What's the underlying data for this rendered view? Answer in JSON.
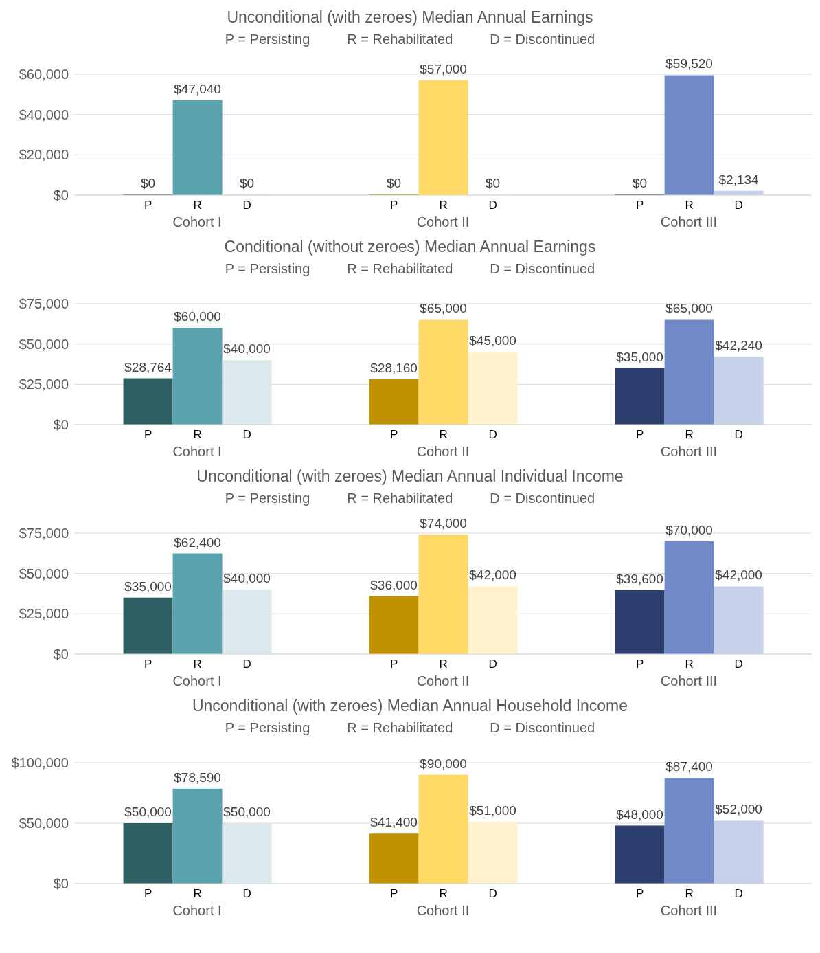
{
  "chart_data": [
    {
      "type": "bar",
      "title": "Unconditional (with zeroes) Median Annual Earnings",
      "annotations": [
        "P = Persisting",
        "R = Rehabilitated",
        "D = Discontinued"
      ],
      "categories": [
        "Cohort I",
        "Cohort II",
        "Cohort III"
      ],
      "series": [
        {
          "name": "P",
          "colors": [
            "#2e5f63",
            "#c09100",
            "#2c3e6e"
          ],
          "values": [
            0,
            0,
            0
          ],
          "value_labels": [
            "$0",
            "$0",
            "$0"
          ]
        },
        {
          "name": "R",
          "colors": [
            "#5aa3ae",
            "#ffd966",
            "#7189c6"
          ],
          "values": [
            47040,
            57000,
            59520
          ],
          "value_labels": [
            "$47,040",
            "$57,000",
            "$59,520"
          ]
        },
        {
          "name": "D",
          "colors": [
            "#dce9ec",
            "#fff2cc",
            "#c6d0e8"
          ],
          "values": [
            0,
            0,
            2134
          ],
          "value_labels": [
            "$0",
            "$0",
            "$2,134"
          ]
        }
      ],
      "ylim": [
        0,
        60000
      ],
      "yticks": [
        {
          "value": 0,
          "label": "$0"
        },
        {
          "value": 20000,
          "label": "$20,000"
        },
        {
          "value": 40000,
          "label": "$40,000"
        },
        {
          "value": 60000,
          "label": "$60,000"
        }
      ],
      "grid": "y"
    },
    {
      "type": "bar",
      "title": "Conditional (without zeroes) Median Annual Earnings",
      "annotations": [
        "P = Persisting",
        "R = Rehabilitated",
        "D = Discontinued"
      ],
      "categories": [
        "Cohort I",
        "Cohort II",
        "Cohort III"
      ],
      "series": [
        {
          "name": "P",
          "colors": [
            "#2e5f63",
            "#c09100",
            "#2c3e6e"
          ],
          "values": [
            28764,
            28160,
            35000
          ],
          "value_labels": [
            "$28,764",
            "$28,160",
            "$35,000"
          ]
        },
        {
          "name": "R",
          "colors": [
            "#5aa3ae",
            "#ffd966",
            "#7189c6"
          ],
          "values": [
            60000,
            65000,
            65000
          ],
          "value_labels": [
            "$60,000",
            "$65,000",
            "$65,000"
          ]
        },
        {
          "name": "D",
          "colors": [
            "#dce9ec",
            "#fff2cc",
            "#c6d0e8"
          ],
          "values": [
            40000,
            45000,
            42240
          ],
          "value_labels": [
            "$40,000",
            "$45,000",
            "$42,240"
          ]
        }
      ],
      "ylim": [
        0,
        75000
      ],
      "yticks": [
        {
          "value": 0,
          "label": "$0"
        },
        {
          "value": 25000,
          "label": "$25,000"
        },
        {
          "value": 50000,
          "label": "$50,000"
        },
        {
          "value": 75000,
          "label": "$75,000"
        }
      ],
      "grid": "y"
    },
    {
      "type": "bar",
      "title": "Unconditional (with zeroes) Median Annual Individual Income",
      "annotations": [
        "P = Persisting",
        "R = Rehabilitated",
        "D = Discontinued"
      ],
      "categories": [
        "Cohort I",
        "Cohort II",
        "Cohort III"
      ],
      "series": [
        {
          "name": "P",
          "colors": [
            "#2e5f63",
            "#c09100",
            "#2c3e6e"
          ],
          "values": [
            35000,
            36000,
            39600
          ],
          "value_labels": [
            "$35,000",
            "$36,000",
            "$39,600"
          ]
        },
        {
          "name": "R",
          "colors": [
            "#5aa3ae",
            "#ffd966",
            "#7189c6"
          ],
          "values": [
            62400,
            74000,
            70000
          ],
          "value_labels": [
            "$62,400",
            "$74,000",
            "$70,000"
          ]
        },
        {
          "name": "D",
          "colors": [
            "#dce9ec",
            "#fff2cc",
            "#c6d0e8"
          ],
          "values": [
            40000,
            42000,
            42000
          ],
          "value_labels": [
            "$40,000",
            "$42,000",
            "$42,000"
          ]
        }
      ],
      "ylim": [
        0,
        75000
      ],
      "yticks": [
        {
          "value": 0,
          "label": "$0"
        },
        {
          "value": 25000,
          "label": "$25,000"
        },
        {
          "value": 50000,
          "label": "$50,000"
        },
        {
          "value": 75000,
          "label": "$75,000"
        }
      ],
      "grid": "y"
    },
    {
      "type": "bar",
      "title": "Unconditional (with zeroes) Median Annual Household Income",
      "annotations": [
        "P = Persisting",
        "R = Rehabilitated",
        "D = Discontinued"
      ],
      "categories": [
        "Cohort I",
        "Cohort II",
        "Cohort III"
      ],
      "series": [
        {
          "name": "P",
          "colors": [
            "#2e5f63",
            "#c09100",
            "#2c3e6e"
          ],
          "values": [
            50000,
            41400,
            48000
          ],
          "value_labels": [
            "$50,000",
            "$41,400",
            "$48,000"
          ]
        },
        {
          "name": "R",
          "colors": [
            "#5aa3ae",
            "#ffd966",
            "#7189c6"
          ],
          "values": [
            78590,
            90000,
            87400
          ],
          "value_labels": [
            "$78,590",
            "$90,000",
            "$87,400"
          ]
        },
        {
          "name": "D",
          "colors": [
            "#dce9ec",
            "#fff2cc",
            "#c6d0e8"
          ],
          "values": [
            50000,
            51000,
            52000
          ],
          "value_labels": [
            "$50,000",
            "$51,000",
            "$52,000"
          ]
        }
      ],
      "ylim": [
        0,
        100000
      ],
      "yticks": [
        {
          "value": 0,
          "label": "$0"
        },
        {
          "value": 50000,
          "label": "$50,000"
        },
        {
          "value": 100000,
          "label": "$100,000"
        }
      ],
      "grid": "y"
    }
  ]
}
